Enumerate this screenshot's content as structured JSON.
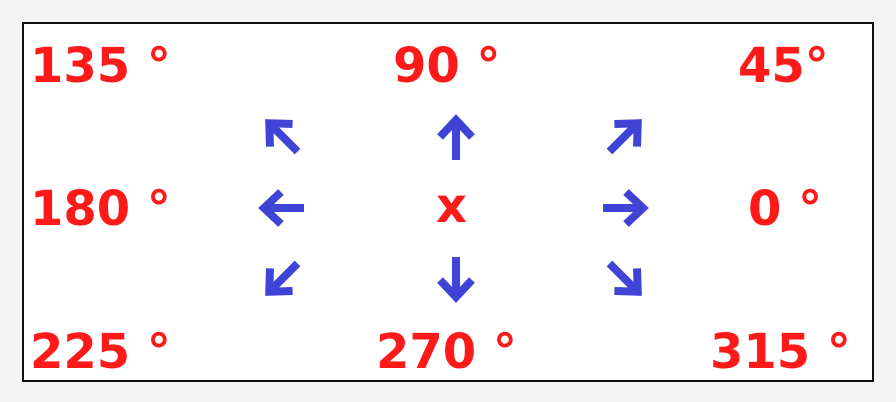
{
  "colors": {
    "label": "#ff1a1a",
    "arrow": "#3f44d6",
    "border": "#111111",
    "background": "#ffffff"
  },
  "labels": {
    "deg135": "135 °",
    "deg90": "90 °",
    "deg45": "45°",
    "deg180": "180 °",
    "center": "x",
    "deg0": "0 °",
    "deg225": "225 °",
    "deg270": "270 °",
    "deg315": "315 °"
  },
  "arrows": [
    {
      "name": "arrow-up-left-icon",
      "direction_deg": 135
    },
    {
      "name": "arrow-up-icon",
      "direction_deg": 90
    },
    {
      "name": "arrow-up-right-icon",
      "direction_deg": 45
    },
    {
      "name": "arrow-left-icon",
      "direction_deg": 180
    },
    {
      "name": "arrow-right-icon",
      "direction_deg": 0
    },
    {
      "name": "arrow-down-left-icon",
      "direction_deg": 225
    },
    {
      "name": "arrow-down-icon",
      "direction_deg": 270
    },
    {
      "name": "arrow-down-right-icon",
      "direction_deg": 315
    }
  ]
}
